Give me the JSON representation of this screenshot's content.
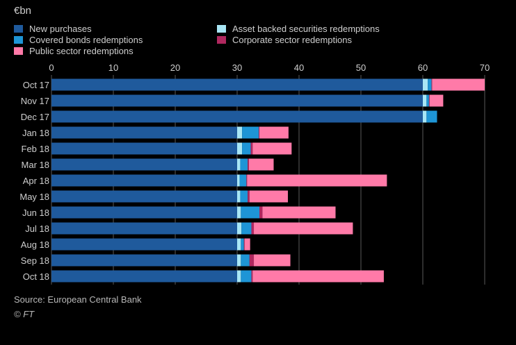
{
  "unit_label": "€bn",
  "source": "Source: European Central Bank",
  "copyright": "© FT",
  "colors": {
    "background": "#000000",
    "grid": "#5a5a5a",
    "text": "#cfcfcf"
  },
  "chart_data": {
    "type": "bar",
    "orientation": "horizontal",
    "stacked": true,
    "categories": [
      "Oct 17",
      "Nov 17",
      "Dec 17",
      "Jan 18",
      "Feb 18",
      "Mar 18",
      "Apr 18",
      "May 18",
      "Jun 18",
      "Jul 18",
      "Aug 18",
      "Sep 18",
      "Oct 18"
    ],
    "series": [
      {
        "name": "New purchases",
        "color": "#1f5a9c",
        "values": [
          60,
          60,
          60,
          30,
          30,
          30,
          30,
          30,
          30,
          30,
          30,
          30,
          30
        ]
      },
      {
        "name": "Asset backed securities redemptions",
        "color": "#a8e6f5",
        "values": [
          0.8,
          0.6,
          0.6,
          0.8,
          0.8,
          0.5,
          0.4,
          0.5,
          0.6,
          0.7,
          0.6,
          0.6,
          0.6
        ]
      },
      {
        "name": "Covered bonds redemptions",
        "color": "#1e95d6",
        "values": [
          0.6,
          0.4,
          1.7,
          2.7,
          1.4,
          1.2,
          1.1,
          1.2,
          3.0,
          1.6,
          0.5,
          1.4,
          1.7
        ]
      },
      {
        "name": "Corporate sector redemptions",
        "color": "#b0285f",
        "values": [
          0.1,
          0.1,
          0.0,
          0.1,
          0.3,
          0.2,
          0.1,
          0.3,
          0.5,
          0.4,
          0.1,
          0.7,
          0.2
        ]
      },
      {
        "name": "Public sector redemptions",
        "color": "#ff7aa8",
        "values": [
          8.5,
          2.2,
          0.0,
          4.7,
          6.3,
          4.0,
          22.6,
          6.2,
          11.8,
          16.0,
          0.9,
          5.9,
          21.2
        ]
      }
    ],
    "xlim": [
      0,
      70
    ],
    "xticks": [
      0,
      10,
      20,
      30,
      40,
      50,
      60,
      70
    ],
    "grid": true,
    "legend_position": "top-left",
    "legend_order": [
      "New purchases",
      "Covered bonds redemptions",
      "Public sector redemptions",
      "Asset backed securities redemptions",
      "Corporate sector redemptions"
    ]
  }
}
